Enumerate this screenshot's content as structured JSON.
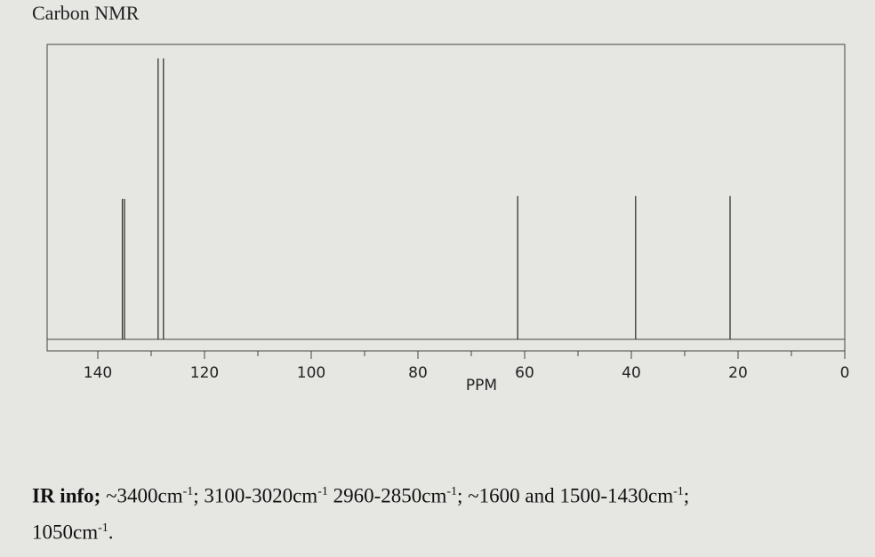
{
  "chart_data": {
    "type": "spectrum",
    "title": "Carbon NMR",
    "x_label": "PPM",
    "x": [
      135.4,
      135.0,
      128.7,
      127.7,
      61.3,
      39.2,
      21.5
    ],
    "values": [
      50,
      50,
      100,
      100,
      51,
      51,
      51
    ],
    "color": "#333333",
    "xlim": [
      149.5,
      0
    ],
    "xticks": [
      140,
      120,
      100,
      80,
      60,
      40,
      20,
      0
    ],
    "xminorticks": [
      130,
      110,
      90,
      70,
      50,
      30,
      10
    ],
    "ylim": [
      0,
      105
    ]
  },
  "ir_info": {
    "label": "IR info;",
    "parts": [
      " ~3400cm",
      "-1",
      "; 3100-3020cm",
      "-1",
      " 2960-2850cm",
      "-1",
      "; ~1600 and 1500-1430cm",
      "-1",
      ";",
      "1050cm",
      "-1",
      "."
    ]
  }
}
